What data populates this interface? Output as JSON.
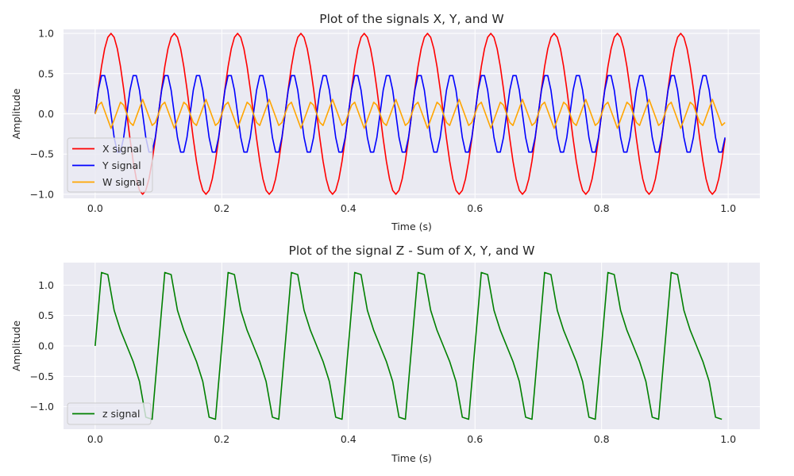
{
  "colors": {
    "axes_bg": "#eaeaf2",
    "grid": "#ffffff",
    "text": "#262626",
    "legend_edge": "#cccccc"
  },
  "chart_data": [
    {
      "type": "line",
      "title": "Plot of the signals X, Y, and W",
      "xlabel": "Time (s)",
      "ylabel": "Amplitude",
      "xlim": [
        -0.05,
        1.05
      ],
      "ylim": [
        -1.05,
        1.05
      ],
      "x_ticks": [
        0.0,
        0.2,
        0.4,
        0.6,
        0.8,
        1.0
      ],
      "x_tick_labels": [
        "0.0",
        "0.2",
        "0.4",
        "0.6",
        "0.8",
        "1.0"
      ],
      "y_ticks": [
        -1.0,
        -0.5,
        0.0,
        0.5,
        1.0
      ],
      "y_tick_labels": [
        "−1.0",
        "−0.5",
        "0.0",
        "0.5",
        "1.0"
      ],
      "grid": true,
      "legend": "lower-left",
      "x": {
        "start": 0,
        "step": 0.005,
        "count": 200
      },
      "series": [
        {
          "name": "X signal",
          "color": "#ff0000",
          "formula": "sin(2*pi*10*t)",
          "amplitude": 1.0,
          "frequency_hz": 10
        },
        {
          "name": "Y signal",
          "color": "#0000ff",
          "formula": "0.5*sin(2*pi*20*t)",
          "amplitude": 0.5,
          "frequency_hz": 20
        },
        {
          "name": "W signal",
          "color": "#ffa500",
          "formula": "0.18*triangle(30*t)",
          "amplitude": 0.18,
          "frequency_hz": 30
        }
      ]
    },
    {
      "type": "line",
      "title": "Plot of the signal Z - Sum of X, Y, and W",
      "xlabel": "Time (s)",
      "ylabel": "Amplitude",
      "xlim": [
        -0.05,
        1.05
      ],
      "ylim": [
        -1.37,
        1.37
      ],
      "x_ticks": [
        0.0,
        0.2,
        0.4,
        0.6,
        0.8,
        1.0
      ],
      "x_tick_labels": [
        "0.0",
        "0.2",
        "0.4",
        "0.6",
        "0.8",
        "1.0"
      ],
      "y_ticks": [
        -1.0,
        -0.5,
        0.0,
        0.5,
        1.0
      ],
      "y_tick_labels": [
        "−1.0",
        "−0.5",
        "0.0",
        "0.5",
        "1.0"
      ],
      "grid": true,
      "legend": "lower-left",
      "x": {
        "start": 0,
        "step": 0.01,
        "count": 100
      },
      "series": [
        {
          "name": "z signal",
          "color": "#008000",
          "formula": "X + Y + W"
        }
      ]
    }
  ]
}
